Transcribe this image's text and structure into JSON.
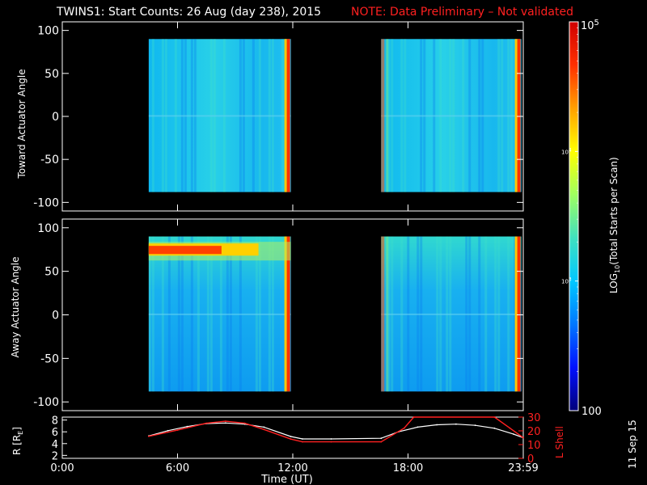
{
  "header": {
    "title": "TWINS1: Start Counts: 26 Aug (day 238), 2015",
    "note": "NOTE: Data Preliminary – Not validated",
    "note_color": "#ff2020"
  },
  "stamp": "11 Sep 15",
  "colorbar": {
    "label_main": "LOG",
    "label_sub": "10",
    "label_rest": "(Total Starts per Scan)",
    "ticks": [
      {
        "value": 100,
        "label": "100"
      },
      {
        "value": 1000,
        "label": "10",
        "exp": "3"
      },
      {
        "value": 10000,
        "label": "10",
        "exp": "4"
      },
      {
        "value": 100000,
        "label": "10",
        "exp": "5"
      }
    ],
    "colormap": [
      "#00007a",
      "#0010ff",
      "#0078ff",
      "#00c8ff",
      "#40e0c0",
      "#a0ff60",
      "#ffff00",
      "#ffa000",
      "#ff3000",
      "#d00000"
    ]
  },
  "chart_data": [
    {
      "type": "heatmap",
      "ylabel": "Toward Actuator Angle",
      "ylim": [
        -110,
        110
      ],
      "yticks": [
        -100,
        -50,
        0,
        50,
        100
      ],
      "xlim": [
        0,
        24
      ],
      "data_blocks": [
        {
          "start_hour": 4.5,
          "end_hour": 11.9
        },
        {
          "start_hour": 16.6,
          "end_hour": 23.9
        }
      ],
      "angle_range": [
        -88,
        90
      ],
      "typical_log_counts": 3.0
    },
    {
      "type": "heatmap",
      "ylabel": "Away Actuator Angle",
      "ylim": [
        -110,
        110
      ],
      "yticks": [
        -100,
        -50,
        0,
        50,
        100
      ],
      "xlim": [
        0,
        24
      ],
      "data_blocks": [
        {
          "start_hour": 4.5,
          "end_hour": 11.9
        },
        {
          "start_hour": 16.6,
          "end_hour": 23.9
        }
      ],
      "angle_range": [
        -88,
        90
      ],
      "high_band_angle": [
        68,
        82
      ],
      "typical_log_counts": 2.95
    },
    {
      "type": "line",
      "xlabel": "Time (UT)",
      "xticks": [
        {
          "hour": 0,
          "label": "0:00"
        },
        {
          "hour": 6,
          "label": "6:00"
        },
        {
          "hour": 12,
          "label": "12:00"
        },
        {
          "hour": 18,
          "label": "18:00"
        },
        {
          "hour": 24,
          "label": "23:59"
        }
      ],
      "left_axis": {
        "label": "R [R",
        "label_sub": "E",
        "label_end": "]",
        "ylim": [
          1.5,
          8.5
        ],
        "yticks": [
          2,
          4,
          6,
          8
        ]
      },
      "right_axis": {
        "label": "L Shell",
        "ylim": [
          0,
          30
        ],
        "yticks": [
          0,
          10,
          20,
          30
        ],
        "color": "#ff2020"
      },
      "series": [
        {
          "axis": "left",
          "color": "#ffffff",
          "x": [
            4.5,
            5.5,
            6.5,
            7.5,
            8.5,
            9.5,
            10.5,
            11.9,
            12.5,
            14,
            16.6,
            17.5,
            18.5,
            19.5,
            20.5,
            21.5,
            22.5,
            23.5,
            24
          ],
          "y": [
            5.3,
            6.2,
            6.9,
            7.4,
            7.5,
            7.3,
            6.8,
            5.2,
            4.8,
            4.8,
            4.9,
            6.0,
            6.8,
            7.2,
            7.3,
            7.1,
            6.6,
            5.6,
            5.0
          ]
        },
        {
          "axis": "right",
          "color": "#ff2020",
          "x": [
            4.5,
            6,
            7.5,
            8.5,
            9.5,
            10.5,
            11.9,
            12.5,
            14,
            16.6,
            17.8,
            18.3,
            22.5,
            23.3,
            24
          ],
          "y": [
            16,
            20.5,
            25.5,
            27,
            25.5,
            21,
            14,
            12,
            12,
            12,
            22,
            30,
            30,
            22,
            15
          ]
        }
      ]
    }
  ]
}
